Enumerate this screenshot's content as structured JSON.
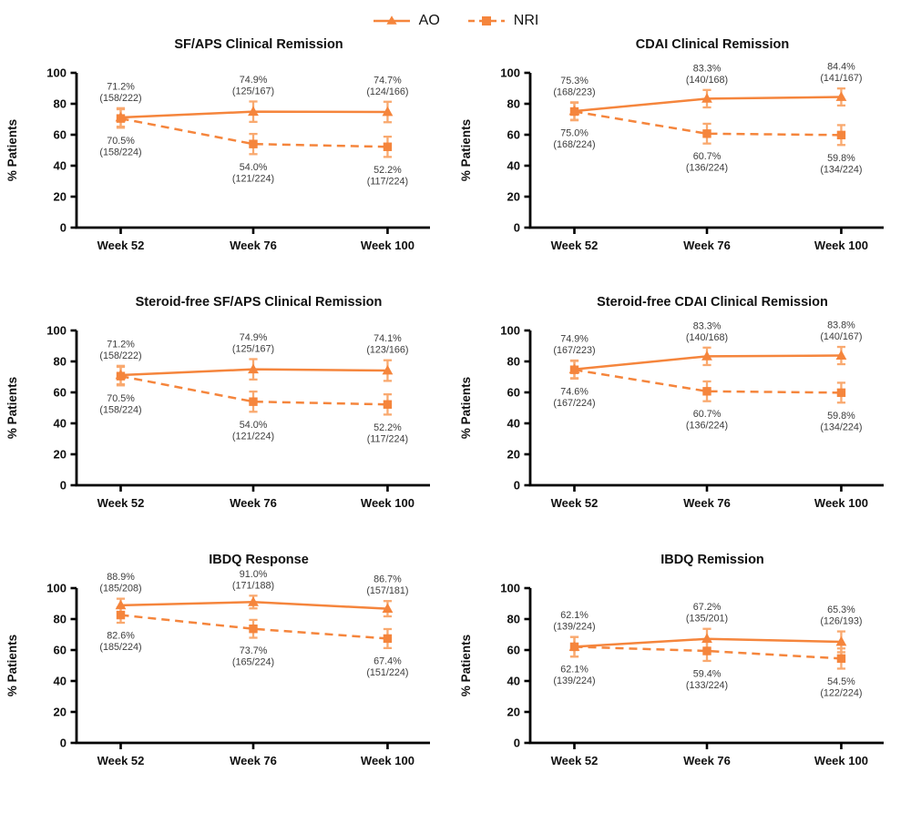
{
  "legend": {
    "items": [
      {
        "label": "AO",
        "marker": "triangle",
        "line": "solid"
      },
      {
        "label": "NRI",
        "marker": "square",
        "line": "dashed"
      }
    ]
  },
  "colors": {
    "series": "#F5853C",
    "error_bar": "#F9A96F",
    "axis": "#000000",
    "label_text": "#3c3c3c",
    "background": "#ffffff"
  },
  "chart_data": [
    {
      "type": "line",
      "title": "SF/APS Clinical Remission",
      "categories": [
        "Week 52",
        "Week 76",
        "Week 100"
      ],
      "ylabel": "% Patients",
      "ylim": [
        0,
        100
      ],
      "yticks": [
        0,
        20,
        40,
        60,
        80,
        100
      ],
      "grid": false,
      "legend_position": "top-center",
      "series": [
        {
          "name": "AO",
          "line": "solid",
          "marker": "triangle",
          "label_pos": "above",
          "values": [
            71.2,
            74.9,
            74.7
          ],
          "counts": [
            [
              158,
              222
            ],
            [
              125,
              167
            ],
            [
              124,
              166
            ]
          ],
          "labels": [
            "71.2%",
            "74.9%",
            "74.7%"
          ],
          "fracs": [
            "(158/222)",
            "(125/167)",
            "(124/166)"
          ]
        },
        {
          "name": "NRI",
          "line": "dashed",
          "marker": "square",
          "label_pos": "below",
          "values": [
            70.5,
            54.0,
            52.2
          ],
          "counts": [
            [
              158,
              224
            ],
            [
              121,
              224
            ],
            [
              117,
              224
            ]
          ],
          "labels": [
            "70.5%",
            "54.0%",
            "52.2%"
          ],
          "fracs": [
            "(158/224)",
            "(121/224)",
            "(117/224)"
          ]
        }
      ]
    },
    {
      "type": "line",
      "title": "CDAI Clinical Remission",
      "categories": [
        "Week 52",
        "Week 76",
        "Week 100"
      ],
      "ylabel": "% Patients",
      "ylim": [
        0,
        100
      ],
      "yticks": [
        0,
        20,
        40,
        60,
        80,
        100
      ],
      "grid": false,
      "series": [
        {
          "name": "AO",
          "line": "solid",
          "marker": "triangle",
          "label_pos": "above",
          "values": [
            75.3,
            83.3,
            84.4
          ],
          "counts": [
            [
              168,
              223
            ],
            [
              140,
              168
            ],
            [
              141,
              167
            ]
          ],
          "labels": [
            "75.3%",
            "83.3%",
            "84.4%"
          ],
          "fracs": [
            "(168/223)",
            "(140/168)",
            "(141/167)"
          ]
        },
        {
          "name": "NRI",
          "line": "dashed",
          "marker": "square",
          "label_pos": "below",
          "values": [
            75.0,
            60.7,
            59.8
          ],
          "counts": [
            [
              168,
              224
            ],
            [
              136,
              224
            ],
            [
              134,
              224
            ]
          ],
          "labels": [
            "75.0%",
            "60.7%",
            "59.8%"
          ],
          "fracs": [
            "(168/224)",
            "(136/224)",
            "(134/224)"
          ]
        }
      ]
    },
    {
      "type": "line",
      "title": "Steroid-free SF/APS Clinical  Remission",
      "categories": [
        "Week 52",
        "Week 76",
        "Week 100"
      ],
      "ylabel": "% Patients",
      "ylim": [
        0,
        100
      ],
      "yticks": [
        0,
        20,
        40,
        60,
        80,
        100
      ],
      "grid": false,
      "series": [
        {
          "name": "AO",
          "line": "solid",
          "marker": "triangle",
          "label_pos": "above",
          "values": [
            71.2,
            74.9,
            74.1
          ],
          "counts": [
            [
              158,
              222
            ],
            [
              125,
              167
            ],
            [
              123,
              166
            ]
          ],
          "labels": [
            "71.2%",
            "74.9%",
            "74.1%"
          ],
          "fracs": [
            "(158/222)",
            "(125/167)",
            "(123/166)"
          ]
        },
        {
          "name": "NRI",
          "line": "dashed",
          "marker": "square",
          "label_pos": "below",
          "values": [
            70.5,
            54.0,
            52.2
          ],
          "counts": [
            [
              158,
              224
            ],
            [
              121,
              224
            ],
            [
              117,
              224
            ]
          ],
          "labels": [
            "70.5%",
            "54.0%",
            "52.2%"
          ],
          "fracs": [
            "(158/224)",
            "(121/224)",
            "(117/224)"
          ]
        }
      ]
    },
    {
      "type": "line",
      "title": "Steroid-free CDAI Clinical Remission",
      "categories": [
        "Week 52",
        "Week 76",
        "Week 100"
      ],
      "ylabel": "% Patients",
      "ylim": [
        0,
        100
      ],
      "yticks": [
        0,
        20,
        40,
        60,
        80,
        100
      ],
      "grid": false,
      "series": [
        {
          "name": "AO",
          "line": "solid",
          "marker": "triangle",
          "label_pos": "above",
          "values": [
            74.9,
            83.3,
            83.8
          ],
          "counts": [
            [
              167,
              223
            ],
            [
              140,
              168
            ],
            [
              140,
              167
            ]
          ],
          "labels": [
            "74.9%",
            "83.3%",
            "83.8%"
          ],
          "fracs": [
            "(167/223)",
            "(140/168)",
            "(140/167)"
          ]
        },
        {
          "name": "NRI",
          "line": "dashed",
          "marker": "square",
          "label_pos": "below",
          "values": [
            74.6,
            60.7,
            59.8
          ],
          "counts": [
            [
              167,
              224
            ],
            [
              136,
              224
            ],
            [
              134,
              224
            ]
          ],
          "labels": [
            "74.6%",
            "60.7%",
            "59.8%"
          ],
          "fracs": [
            "(167/224)",
            "(136/224)",
            "(134/224)"
          ]
        }
      ]
    },
    {
      "type": "line",
      "title": "IBDQ  Response",
      "categories": [
        "Week 52",
        "Week 76",
        "Week 100"
      ],
      "ylabel": "% Patients",
      "ylim": [
        0,
        100
      ],
      "yticks": [
        0,
        20,
        40,
        60,
        80,
        100
      ],
      "grid": false,
      "series": [
        {
          "name": "AO",
          "line": "solid",
          "marker": "triangle",
          "label_pos": "above",
          "values": [
            88.9,
            91.0,
            86.7
          ],
          "counts": [
            [
              185,
              208
            ],
            [
              171,
              188
            ],
            [
              157,
              181
            ]
          ],
          "labels": [
            "88.9%",
            "91.0%",
            "86.7%"
          ],
          "fracs": [
            "(185/208)",
            "(171/188)",
            "(157/181)"
          ]
        },
        {
          "name": "NRI",
          "line": "dashed",
          "marker": "square",
          "label_pos": "below",
          "values": [
            82.6,
            73.7,
            67.4
          ],
          "counts": [
            [
              185,
              224
            ],
            [
              165,
              224
            ],
            [
              151,
              224
            ]
          ],
          "labels": [
            "82.6%",
            "73.7%",
            "67.4%"
          ],
          "fracs": [
            "(185/224)",
            "(165/224)",
            "(151/224)"
          ]
        }
      ]
    },
    {
      "type": "line",
      "title": "IBDQ Remission",
      "categories": [
        "Week 52",
        "Week 76",
        "Week 100"
      ],
      "ylabel": "% Patients",
      "ylim": [
        0,
        100
      ],
      "yticks": [
        0,
        20,
        40,
        60,
        80,
        100
      ],
      "grid": false,
      "series": [
        {
          "name": "AO",
          "line": "solid",
          "marker": "triangle",
          "label_pos": "above",
          "values": [
            62.1,
            67.2,
            65.3
          ],
          "counts": [
            [
              139,
              224
            ],
            [
              135,
              201
            ],
            [
              126,
              193
            ]
          ],
          "labels": [
            "62.1%",
            "67.2%",
            "65.3%"
          ],
          "fracs": [
            "(139/224)",
            "(135/201)",
            "(126/193)"
          ]
        },
        {
          "name": "NRI",
          "line": "dashed",
          "marker": "square",
          "label_pos": "below",
          "values": [
            62.1,
            59.4,
            54.5
          ],
          "counts": [
            [
              139,
              224
            ],
            [
              133,
              224
            ],
            [
              122,
              224
            ]
          ],
          "labels": [
            "62.1%",
            "59.4%",
            "54.5%"
          ],
          "fracs": [
            "(139/224)",
            "(133/224)",
            "(122/224)"
          ]
        }
      ]
    }
  ]
}
